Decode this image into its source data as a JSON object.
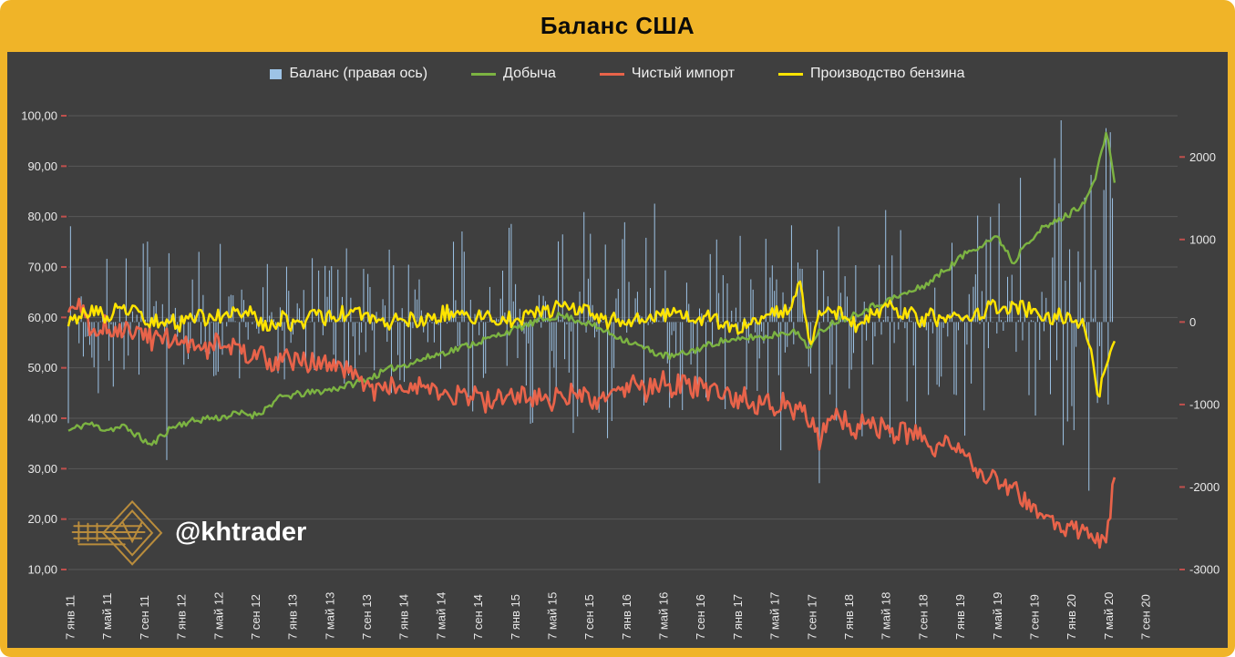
{
  "frame": {
    "title": "Баланс США"
  },
  "watermark": {
    "handle": "@khtrader"
  },
  "colors": {
    "frame": "#F0B428",
    "panel": "#3F3F3F",
    "grid": "#595959",
    "axis_text": "#E8E8E8",
    "axis_tick": "#C0504D",
    "title_text": "#0B0B0B",
    "watermark_gold": "#B98C3C"
  },
  "legend": [
    {
      "label": "Баланс (правая ось)",
      "type": "bar",
      "color": "#9DC3E6"
    },
    {
      "label": "Добыча",
      "type": "line",
      "color": "#7CB342"
    },
    {
      "label": "Чистый импорт",
      "type": "line",
      "color": "#E8634A"
    },
    {
      "label": "Производство бензина",
      "type": "line",
      "color": "#FFE400"
    }
  ],
  "chart_data": {
    "type": "combo",
    "title": "Баланс США",
    "x_domain": [
      2011.0,
      2020.97
    ],
    "x_tick_labels": [
      "7 янв 11",
      "7 май 11",
      "7 сен 11",
      "7 янв 12",
      "7 май 12",
      "7 сен 12",
      "7 янв 13",
      "7 май 13",
      "7 сен 13",
      "7 янв 14",
      "7 май 14",
      "7 сен 14",
      "7 янв 15",
      "7 май 15",
      "7 сен 15",
      "7 янв 16",
      "7 май 16",
      "7 сен 16",
      "7 янв 17",
      "7 май 17",
      "7 сен 17",
      "7 янв 18",
      "7 май 18",
      "7 сен 18",
      "7 янв 19",
      "7 май 19",
      "7 сен 19",
      "7 янв 20",
      "7 май 20",
      "7 сен 20"
    ],
    "y_left": {
      "min": 10,
      "max": 100,
      "tick_step": 10,
      "tick_labels": [
        "100,00",
        "90,00",
        "80,00",
        "70,00",
        "60,00",
        "50,00",
        "40,00",
        "30,00",
        "20,00",
        "10,00"
      ]
    },
    "y_right": {
      "axis_range": [
        -3000,
        2500
      ],
      "tick_values": [
        2000,
        1000,
        0,
        -1000,
        -2000,
        -3000
      ],
      "tick_labels": [
        "2000",
        "1000",
        "0",
        "-1000",
        "-2000",
        "-3000"
      ]
    },
    "grid": "horizontal",
    "legend_position": "top",
    "noise": {
      "seed": 11,
      "weekly_jitter": [
        0.7,
        2.2,
        1.6
      ]
    },
    "series": [
      {
        "name": "Добыча",
        "axis": "left",
        "color": "#7CB342",
        "width": 2.4,
        "start": 2011.0,
        "step_months": 1,
        "values": [
          37.5,
          38.2,
          39.0,
          38.4,
          37.8,
          38.0,
          38.3,
          37.2,
          35.8,
          34.6,
          36.5,
          38.0,
          38.8,
          39.3,
          39.6,
          40.1,
          40.0,
          40.4,
          40.8,
          41.0,
          40.6,
          41.5,
          43.0,
          44.2,
          44.5,
          44.8,
          45.0,
          45.3,
          45.6,
          46.0,
          46.5,
          47.0,
          47.6,
          48.4,
          49.2,
          50.0,
          50.5,
          51.0,
          51.6,
          52.2,
          52.8,
          53.3,
          53.8,
          54.5,
          55.0,
          55.6,
          56.2,
          57.0,
          57.5,
          58.2,
          58.8,
          59.4,
          60.0,
          60.4,
          60.0,
          59.4,
          58.8,
          58.0,
          57.2,
          56.4,
          55.6,
          54.8,
          54.0,
          53.2,
          52.6,
          52.2,
          52.6,
          53.2,
          53.8,
          54.5,
          55.1,
          55.5,
          55.3,
          55.8,
          56.2,
          56.0,
          56.5,
          57.0,
          57.3,
          56.2,
          53.8,
          57.0,
          58.5,
          59.5,
          60.0,
          60.8,
          61.6,
          62.4,
          63.1,
          63.8,
          64.5,
          65.2,
          66.0,
          67.2,
          68.6,
          70.0,
          71.5,
          73.0,
          74.0,
          75.0,
          76.0,
          74.0,
          70.5,
          74.5,
          76.0,
          77.5,
          78.5,
          79.5,
          80.5,
          82.0,
          84.0,
          89.0,
          97.5,
          84.0
        ]
      },
      {
        "name": "Чистый импорт",
        "axis": "left",
        "color": "#E8634A",
        "width": 2.7,
        "start": 2011.0,
        "step_months": 1,
        "values": [
          60.5,
          63.5,
          58.5,
          57.5,
          58.5,
          57.0,
          58.0,
          56.5,
          57.5,
          55.5,
          56.5,
          55.0,
          55.5,
          54.5,
          56.0,
          54.0,
          55.0,
          53.5,
          54.5,
          52.5,
          53.0,
          52.0,
          51.0,
          52.0,
          51.5,
          50.5,
          51.5,
          50.0,
          50.5,
          49.5,
          50.0,
          48.5,
          47.5,
          44.5,
          46.5,
          47.0,
          46.0,
          45.0,
          46.5,
          44.5,
          45.5,
          44.0,
          45.0,
          43.5,
          44.5,
          43.0,
          44.0,
          43.5,
          44.0,
          45.5,
          43.5,
          44.5,
          43.0,
          44.5,
          45.0,
          43.5,
          44.5,
          42.5,
          43.5,
          44.5,
          45.5,
          46.5,
          45.0,
          46.5,
          47.5,
          46.0,
          47.0,
          45.5,
          46.5,
          44.5,
          45.0,
          44.0,
          43.5,
          44.5,
          42.5,
          43.5,
          42.0,
          43.0,
          41.5,
          42.5,
          40.0,
          36.0,
          41.0,
          40.0,
          39.5,
          38.0,
          39.5,
          37.5,
          38.5,
          36.5,
          38.0,
          36.0,
          37.5,
          35.0,
          34.0,
          35.5,
          34.0,
          32.0,
          30.5,
          29.0,
          28.5,
          27.0,
          26.0,
          24.5,
          23.0,
          21.5,
          20.0,
          19.0,
          18.5,
          17.0,
          16.5,
          15.5,
          17.5,
          29.5
        ]
      },
      {
        "name": "Производство бензина",
        "axis": "left",
        "color": "#FFE400",
        "width": 2.5,
        "start": 2011.0,
        "step_months": 1,
        "values": [
          59.0,
          60.5,
          61.0,
          61.5,
          60.0,
          61.5,
          62.0,
          61.0,
          60.0,
          58.5,
          60.0,
          59.5,
          58.5,
          59.5,
          60.5,
          59.0,
          60.0,
          61.0,
          60.5,
          61.5,
          60.0,
          59.0,
          58.5,
          60.0,
          58.0,
          59.0,
          60.0,
          60.5,
          59.5,
          61.0,
          60.5,
          61.5,
          60.5,
          59.5,
          58.5,
          59.5,
          58.5,
          59.5,
          58.5,
          60.0,
          60.5,
          61.0,
          61.5,
          60.5,
          59.5,
          60.5,
          59.5,
          60.5,
          59.0,
          60.0,
          61.0,
          60.5,
          61.5,
          62.0,
          61.5,
          62.0,
          61.0,
          60.0,
          59.0,
          60.0,
          58.5,
          59.5,
          60.5,
          61.0,
          60.0,
          61.5,
          61.0,
          60.5,
          59.5,
          60.5,
          59.5,
          58.5,
          58.0,
          59.0,
          60.0,
          60.5,
          61.0,
          61.5,
          61.5,
          67.5,
          54.5,
          60.0,
          60.5,
          61.0,
          59.5,
          58.5,
          60.0,
          61.0,
          61.5,
          62.0,
          61.0,
          60.5,
          59.5,
          60.5,
          59.0,
          60.5,
          59.0,
          60.0,
          61.0,
          61.5,
          62.0,
          62.5,
          61.5,
          62.0,
          61.0,
          60.5,
          59.5,
          60.5,
          60.0,
          59.0,
          57.0,
          43.5,
          50.0,
          57.5
        ]
      }
    ],
    "balance_bars": {
      "name": "Баланс (правая ось)",
      "axis": "right",
      "color": "#9DC3E6",
      "start": 2011.0,
      "end": 2020.4,
      "per_year": 52,
      "seed": 7,
      "amplitude_env": [
        [
          2011,
          680
        ],
        [
          2012,
          560
        ],
        [
          2013,
          500
        ],
        [
          2014,
          530
        ],
        [
          2015,
          620
        ],
        [
          2016,
          820
        ],
        [
          2017,
          700
        ],
        [
          2018,
          640
        ],
        [
          2019,
          900
        ],
        [
          2020.4,
          1500
        ]
      ],
      "tail_values": [
        -700,
        1600,
        2350,
        -1000,
        2300,
        1500
      ]
    }
  }
}
